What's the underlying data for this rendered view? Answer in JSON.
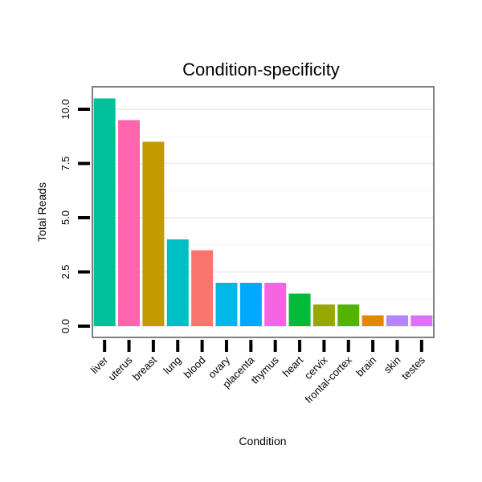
{
  "chart_data": {
    "type": "bar",
    "title": "Condition-specificity",
    "xlabel": "Condition",
    "ylabel": "Total Reads",
    "ylim": [
      -0.5,
      11
    ],
    "yticks": [
      0.0,
      2.5,
      5.0,
      7.5,
      10.0
    ],
    "ytick_labels": [
      "0.0",
      "2.5",
      "5.0",
      "7.5",
      "10.0"
    ],
    "grid": true,
    "legend": "none",
    "categories": [
      "liver",
      "uterus",
      "breast",
      "lung",
      "blood",
      "ovary",
      "placenta",
      "thymus",
      "heart",
      "cervix",
      "frontal-cortex",
      "brain",
      "skin",
      "testes"
    ],
    "values": [
      10.5,
      9.5,
      8.5,
      4.0,
      3.5,
      2.0,
      2.0,
      2.0,
      1.5,
      1.0,
      1.0,
      0.5,
      0.5,
      0.5
    ],
    "colors": [
      "#00C19A",
      "#FF65AE",
      "#C49A00",
      "#00BFC4",
      "#F8766D",
      "#00B8E7",
      "#00A9FF",
      "#F564E3",
      "#00BA38",
      "#99A800",
      "#53B400",
      "#E38900",
      "#B385FF",
      "#DC71FA"
    ]
  }
}
